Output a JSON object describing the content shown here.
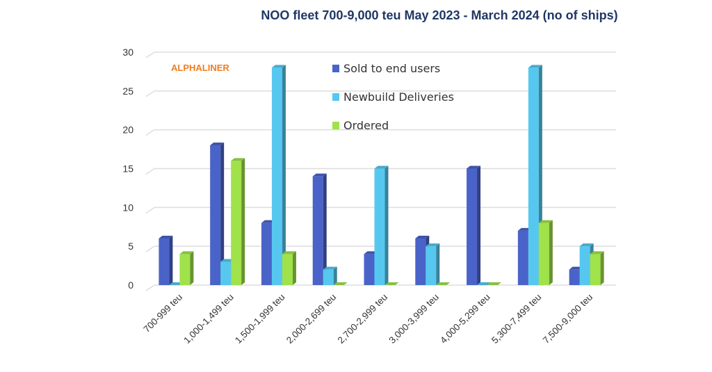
{
  "chart_data": {
    "type": "bar",
    "title": "NOO fleet 700-9,000 teu May 2023 - March 2024 (no of ships)",
    "watermark": "ALPHALINER",
    "categories": [
      "700-999 teu",
      "1,000-1,499 teu",
      "1,500-1,999 teu",
      "2,000-2,699 teu",
      "2,700-2,999 teu",
      "3,000-3,999 teu",
      "4,000-5,299 teu",
      "5,300-7,499 teu",
      "7,500-9,000 teu"
    ],
    "series": [
      {
        "name": "Sold to end users",
        "color": "#4a63c8",
        "values": [
          6,
          18,
          8,
          14,
          4,
          6,
          15,
          7,
          2
        ]
      },
      {
        "name": "Newbuild Deliveries",
        "color": "#56c8ef",
        "values": [
          0,
          3,
          28,
          2,
          15,
          5,
          0,
          28,
          5
        ]
      },
      {
        "name": "Ordered",
        "color": "#a0e24a",
        "values": [
          4,
          16,
          4,
          0,
          0,
          0,
          0,
          8,
          4
        ]
      }
    ],
    "ylim": [
      0,
      30
    ],
    "yticks": [
      0,
      5,
      10,
      15,
      20,
      25,
      30
    ],
    "grid": true,
    "legend_placement": "top-center",
    "style": "3d-column"
  }
}
